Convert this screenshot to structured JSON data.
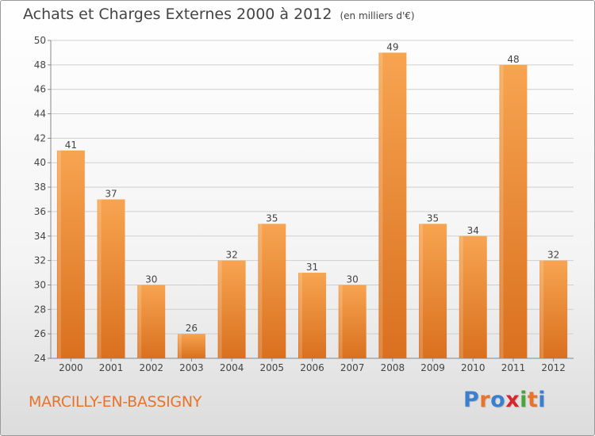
{
  "header": {
    "title": "Achats et Charges Externes 2000 à 2012",
    "unit": "(en milliers d'€)"
  },
  "footer": {
    "city": "MARCILLY-EN-BASSIGNY",
    "logo": "Proxiti",
    "logo_colors": [
      "#3a7fd0",
      "#e8742a",
      "#3a7fd0",
      "#d8262d",
      "#4aa63a",
      "#e8742a",
      "#3a7fd0"
    ]
  },
  "colors": {
    "bar_light": "#f7a450",
    "bar_dark": "#d9701f",
    "text": "#444444",
    "city": "#e8742a"
  },
  "chart_data": {
    "type": "bar",
    "title": "Achats et Charges Externes 2000 à 2012",
    "subtitle": "(en milliers d'€)",
    "categories": [
      "2000",
      "2001",
      "2002",
      "2003",
      "2004",
      "2005",
      "2006",
      "2007",
      "2008",
      "2009",
      "2010",
      "2011",
      "2012"
    ],
    "values": [
      41,
      37,
      30,
      26,
      32,
      35,
      31,
      30,
      49,
      35,
      34,
      48,
      32
    ],
    "ylim": [
      24,
      50
    ],
    "yticks": [
      24,
      26,
      28,
      30,
      32,
      34,
      36,
      38,
      40,
      42,
      44,
      46,
      48,
      50
    ],
    "grid": true,
    "xlabel": "",
    "ylabel": ""
  }
}
